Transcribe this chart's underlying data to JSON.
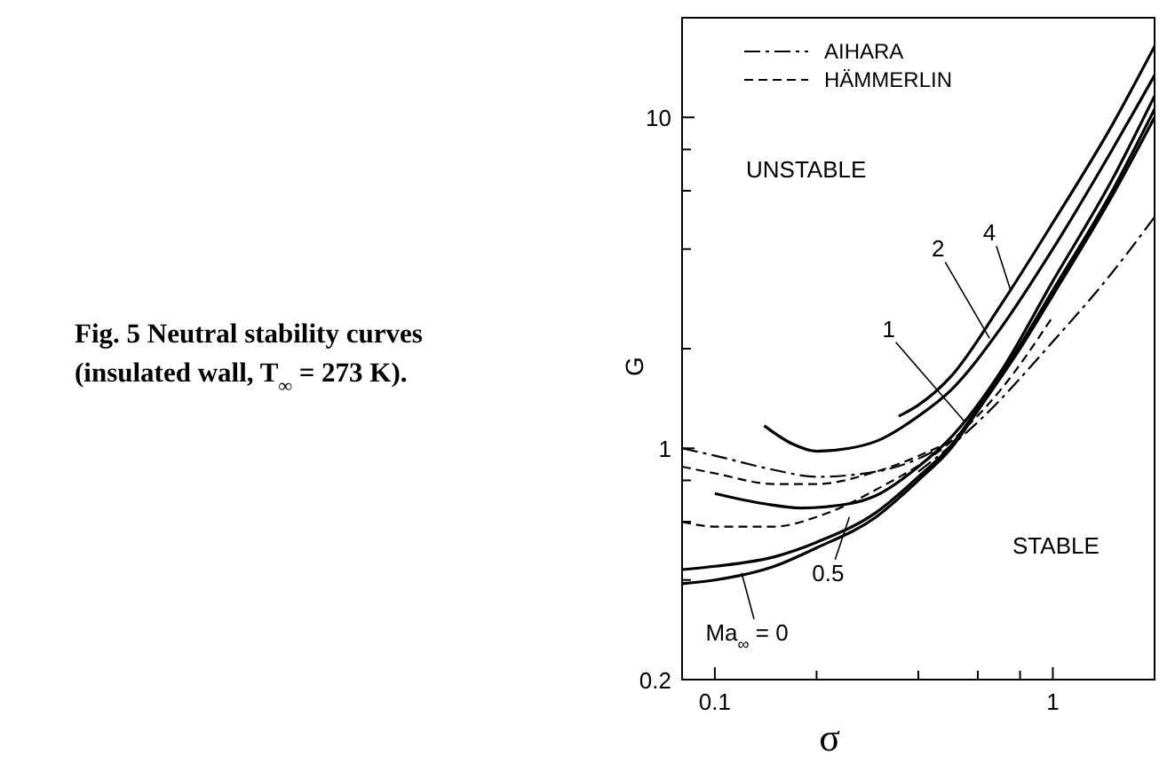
{
  "chart_data": {
    "type": "line",
    "title": "Fig. 5 Neutral stability curves (insulated wall, T$_{∞}$ = 273 K).",
    "xlabel": "σ",
    "ylabel": "G",
    "log": "xy",
    "grid": false,
    "legend": "top left",
    "xlim": [
      0.08,
      2
    ],
    "ylim": [
      0.2,
      20
    ],
    "xticks": [
      0.1,
      {
        "value": 0.2,
        "label": null
      },
      {
        "value": 0.4,
        "label": null
      },
      {
        "value": 0.6,
        "label": null
      },
      {
        "value": 0.8,
        "label": null
      },
      1
    ],
    "yticks": [
      0.2,
      {
        "value": 0.4,
        "label": null
      },
      {
        "value": 0.6,
        "label": null
      },
      {
        "value": 0.8,
        "label": null
      },
      1,
      {
        "value": 2,
        "label": null
      },
      {
        "value": 4,
        "label": null
      },
      {
        "value": 6,
        "label": null
      },
      {
        "value": 8,
        "label": null
      },
      10
    ],
    "series": [
      {
        "color": "#000000",
        "line_style": "solid",
        "x": [
          0.08,
          0.1,
          0.15,
          0.2,
          0.3,
          0.4,
          0.5,
          0.6,
          0.8,
          1,
          1.5,
          2
        ],
        "values": [
          0.39,
          0.4,
          0.44,
          0.5,
          0.62,
          0.8,
          1.0,
          1.3,
          2.0,
          2.9,
          5.8,
          10.0
        ]
      },
      {
        "color": "#000000",
        "line_style": "solid",
        "x": [
          0.08,
          0.1,
          0.15,
          0.2,
          0.3,
          0.4,
          0.5,
          0.6,
          0.8,
          1,
          1.5,
          2
        ],
        "values": [
          0.43,
          0.44,
          0.47,
          0.52,
          0.64,
          0.82,
          1.02,
          1.32,
          2.05,
          3.0,
          6.0,
          10.6
        ]
      },
      {
        "color": "#000000",
        "line_style": "solid",
        "x": [
          0.1,
          0.14,
          0.18,
          0.25,
          0.3,
          0.4,
          0.5,
          0.7,
          1,
          1.5,
          2
        ],
        "values": [
          0.73,
          0.68,
          0.66,
          0.68,
          0.72,
          0.88,
          1.08,
          1.7,
          3.2,
          6.5,
          11.6
        ]
      },
      {
        "color": "#000000",
        "line_style": "solid",
        "x": [
          0.14,
          0.17,
          0.2,
          0.25,
          0.3,
          0.4,
          0.5,
          0.7,
          1,
          1.5,
          2
        ],
        "values": [
          1.17,
          1.03,
          0.98,
          1.0,
          1.05,
          1.25,
          1.5,
          2.3,
          4.0,
          8.0,
          13.4
        ]
      },
      {
        "color": "#000000",
        "line_style": "solid",
        "x": [
          0.35,
          0.4,
          0.5,
          0.7,
          1,
          1.5,
          2
        ],
        "values": [
          1.25,
          1.35,
          1.65,
          2.7,
          4.8,
          9.5,
          16.4
        ]
      },
      {
        "name": "AIHARA",
        "color": "#000000",
        "line_style": "dashdot",
        "x": [
          0.08,
          0.1,
          0.15,
          0.2,
          0.3,
          0.4,
          0.5
        ],
        "values": [
          1.0,
          0.95,
          0.86,
          0.82,
          0.85,
          0.93,
          1.05
        ]
      },
      {
        "color": "#000000",
        "line_style": "dashdot",
        "x": [
          0.4,
          0.6,
          1,
          1.5,
          2
        ],
        "values": [
          0.85,
          1.2,
          2.1,
          3.4,
          5.0
        ]
      },
      {
        "name": "HÄMMERLIN",
        "color": "#000000",
        "line_style": "dashed",
        "x": [
          0.08,
          0.1,
          0.15,
          0.2,
          0.3,
          0.5
        ],
        "values": [
          0.88,
          0.84,
          0.78,
          0.78,
          0.85,
          1.05
        ]
      },
      {
        "color": "#000000",
        "line_style": "dashed",
        "x": [
          0.08,
          0.1,
          0.15,
          0.2,
          0.3,
          0.5,
          0.7,
          1
        ],
        "values": [
          0.6,
          0.58,
          0.58,
          0.62,
          0.75,
          1.05,
          1.5,
          2.5
        ]
      }
    ],
    "annotations": [
      "UNSTABLE",
      "STABLE",
      {
        "text": "4",
        "x": 0.75,
        "y": 3.0
      },
      {
        "text": "2",
        "x": 0.65,
        "y": 2.15
      },
      {
        "text": "1",
        "x": 0.55,
        "y": 1.2
      },
      {
        "text": "0.5",
        "x": 0.25,
        "y": 0.62
      },
      {
        "text": "Ma$_{∞}$ = 0",
        "x": 0.12,
        "y": 0.42
      }
    ]
  }
}
